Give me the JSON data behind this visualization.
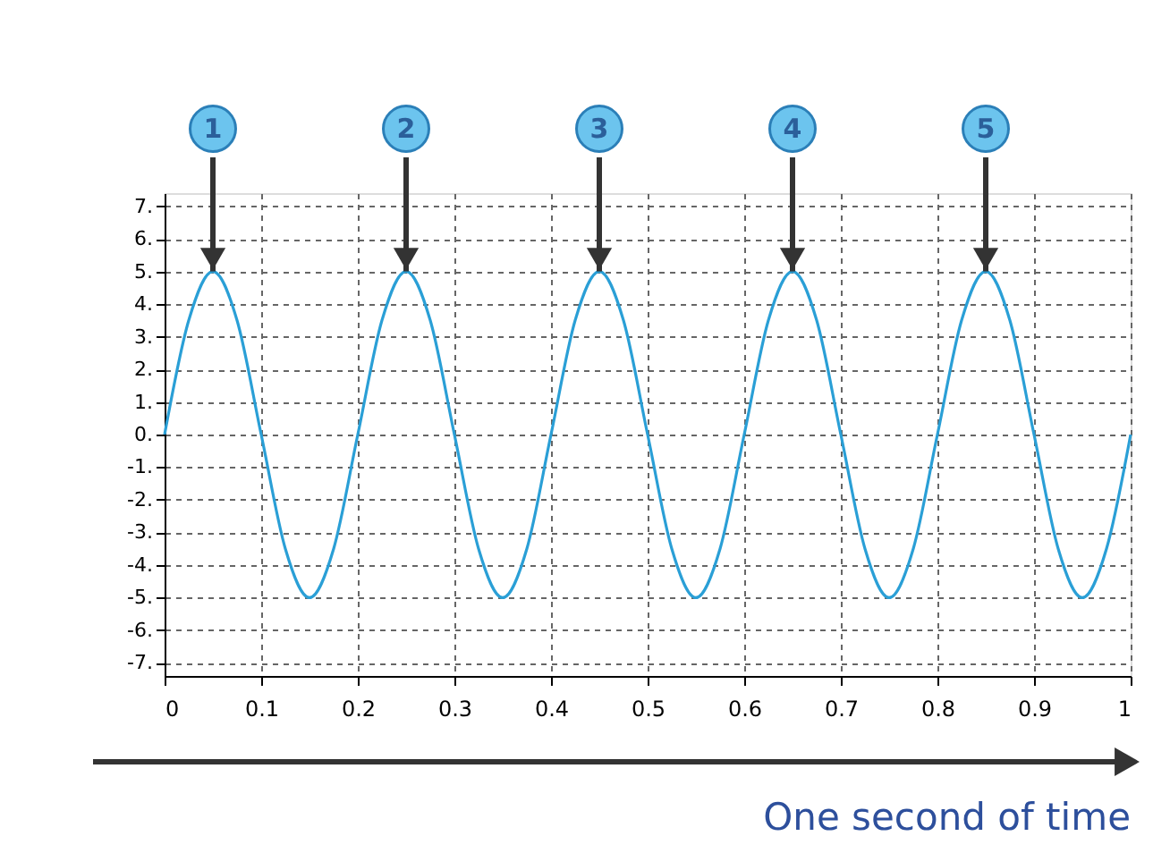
{
  "chart_data": {
    "type": "line",
    "x": [
      0,
      0.025,
      0.05,
      0.075,
      0.1,
      0.125,
      0.15,
      0.175,
      0.2,
      0.225,
      0.25,
      0.275,
      0.3,
      0.325,
      0.35,
      0.375,
      0.4,
      0.425,
      0.45,
      0.475,
      0.5,
      0.525,
      0.55,
      0.575,
      0.6,
      0.625,
      0.65,
      0.675,
      0.7,
      0.725,
      0.75,
      0.775,
      0.8,
      0.825,
      0.85,
      0.875,
      0.9,
      0.925,
      0.95,
      0.975,
      1
    ],
    "series": [
      {
        "color": "#2a9fd6",
        "values": [
          0,
          3.5,
          5,
          3.5,
          0,
          -3.5,
          -5,
          -3.5,
          0,
          3.5,
          5,
          3.5,
          0,
          -3.5,
          -5,
          -3.5,
          0,
          3.5,
          5,
          3.5,
          0,
          -3.5,
          -5,
          -3.5,
          0,
          3.5,
          5,
          3.5,
          0,
          -3.5,
          -5,
          -3.5,
          0,
          3.5,
          5,
          3.5,
          0,
          -3.5,
          -5,
          -3.5,
          0
        ]
      }
    ],
    "xlim": [
      0,
      1
    ],
    "xticks": [
      0,
      0.1,
      0.2,
      0.3,
      0.4,
      0.5,
      0.6,
      0.7,
      0.8,
      0.9,
      1
    ],
    "ylim": [
      -7.4,
      7.4
    ],
    "yticks": [
      {
        "value": -7,
        "label": "-7."
      },
      {
        "value": -6,
        "label": "-6."
      },
      {
        "value": -5,
        "label": "-5."
      },
      {
        "value": -4,
        "label": "-4."
      },
      {
        "value": -3,
        "label": "-3."
      },
      {
        "value": -2,
        "label": "-2."
      },
      {
        "value": -1,
        "label": "-1."
      },
      {
        "value": 0,
        "label": "0."
      },
      {
        "value": 1,
        "label": "1."
      },
      {
        "value": 2,
        "label": "2."
      },
      {
        "value": 3,
        "label": "3."
      },
      {
        "value": 4,
        "label": "4."
      },
      {
        "value": 5,
        "label": "5."
      },
      {
        "value": 6,
        "label": "6."
      },
      {
        "value": 7,
        "label": "7."
      }
    ],
    "grid": true,
    "line_style": "solid",
    "marker": "none",
    "annotations": [
      {
        "text": "1",
        "x": 0.05,
        "y": 5
      },
      {
        "text": "2",
        "x": 0.25,
        "y": 5
      },
      {
        "text": "3",
        "x": 0.45,
        "y": 5
      },
      {
        "text": "4",
        "x": 0.65,
        "y": 5
      },
      {
        "text": "5",
        "x": 0.85,
        "y": 5
      },
      "One second of time"
    ]
  }
}
